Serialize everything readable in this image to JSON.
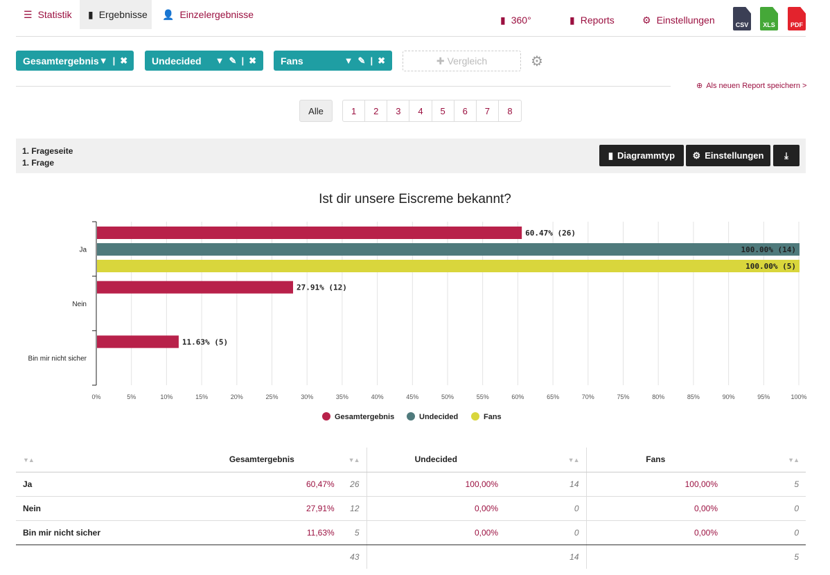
{
  "nav": {
    "statistik": "Statistik",
    "ergebnisse": "Ergebnisse",
    "einzel": "Einzelergebnisse",
    "r360": "360°",
    "reports": "Reports",
    "einstellungen": "Einstellungen",
    "csv": "CSV",
    "xls": "XLS",
    "pdf": "PDF"
  },
  "filters": [
    {
      "label": "Gesamtergebnis"
    },
    {
      "label": "Undecided"
    },
    {
      "label": "Fans"
    }
  ],
  "vergleich": "Vergleich",
  "save_report": "Als neuen Report speichern >",
  "pager": {
    "all": "Alle",
    "pages": [
      "1",
      "2",
      "3",
      "4",
      "5",
      "6",
      "7",
      "8"
    ]
  },
  "section": {
    "page": "1. Frageseite",
    "question": "1. Frage",
    "diagrammtyp": "Diagrammtyp",
    "einstellungen": "Einstellungen"
  },
  "colors": {
    "accent": "#9b1040",
    "teal": "#1f9ea3",
    "s1": "#b8214a",
    "s2": "#4f7a7c",
    "s3": "#d9d63c"
  },
  "chart_data": {
    "type": "bar",
    "title": "Ist dir unsere Eiscreme bekannt?",
    "categories": [
      "Ja",
      "Nein",
      "Bin mir nicht sicher"
    ],
    "series": [
      {
        "name": "Gesamtergebnis",
        "values": [
          60.47,
          27.91,
          11.63
        ],
        "counts": [
          26,
          12,
          5
        ],
        "labels": [
          "60.47% (26)",
          "27.91% (12)",
          "11.63% (5)"
        ]
      },
      {
        "name": "Undecided",
        "values": [
          100,
          0,
          0
        ],
        "counts": [
          14,
          0,
          0
        ],
        "labels": [
          "100.00% (14)",
          "",
          ""
        ]
      },
      {
        "name": "Fans",
        "values": [
          100,
          0,
          0
        ],
        "counts": [
          5,
          0,
          0
        ],
        "labels": [
          "100.00% (5)",
          "",
          ""
        ]
      }
    ],
    "xlim": [
      0,
      100
    ],
    "xticks": [
      "0%",
      "5%",
      "10%",
      "15%",
      "20%",
      "25%",
      "30%",
      "35%",
      "40%",
      "45%",
      "50%",
      "55%",
      "60%",
      "65%",
      "70%",
      "75%",
      "80%",
      "85%",
      "90%",
      "95%",
      "100%"
    ],
    "legend": "bottom",
    "grid": true
  },
  "table": {
    "headers": [
      "Gesamtergebnis",
      "Undecided",
      "Fans"
    ],
    "rows": [
      {
        "label": "Ja",
        "cells": [
          [
            "60,47%",
            "26"
          ],
          [
            "100,00%",
            "14"
          ],
          [
            "100,00%",
            "5"
          ]
        ]
      },
      {
        "label": "Nein",
        "cells": [
          [
            "27,91%",
            "12"
          ],
          [
            "0,00%",
            "0"
          ],
          [
            "0,00%",
            "0"
          ]
        ]
      },
      {
        "label": "Bin mir nicht sicher",
        "cells": [
          [
            "11,63%",
            "5"
          ],
          [
            "0,00%",
            "0"
          ],
          [
            "0,00%",
            "0"
          ]
        ]
      }
    ],
    "totals": [
      "43",
      "14",
      "5"
    ]
  }
}
